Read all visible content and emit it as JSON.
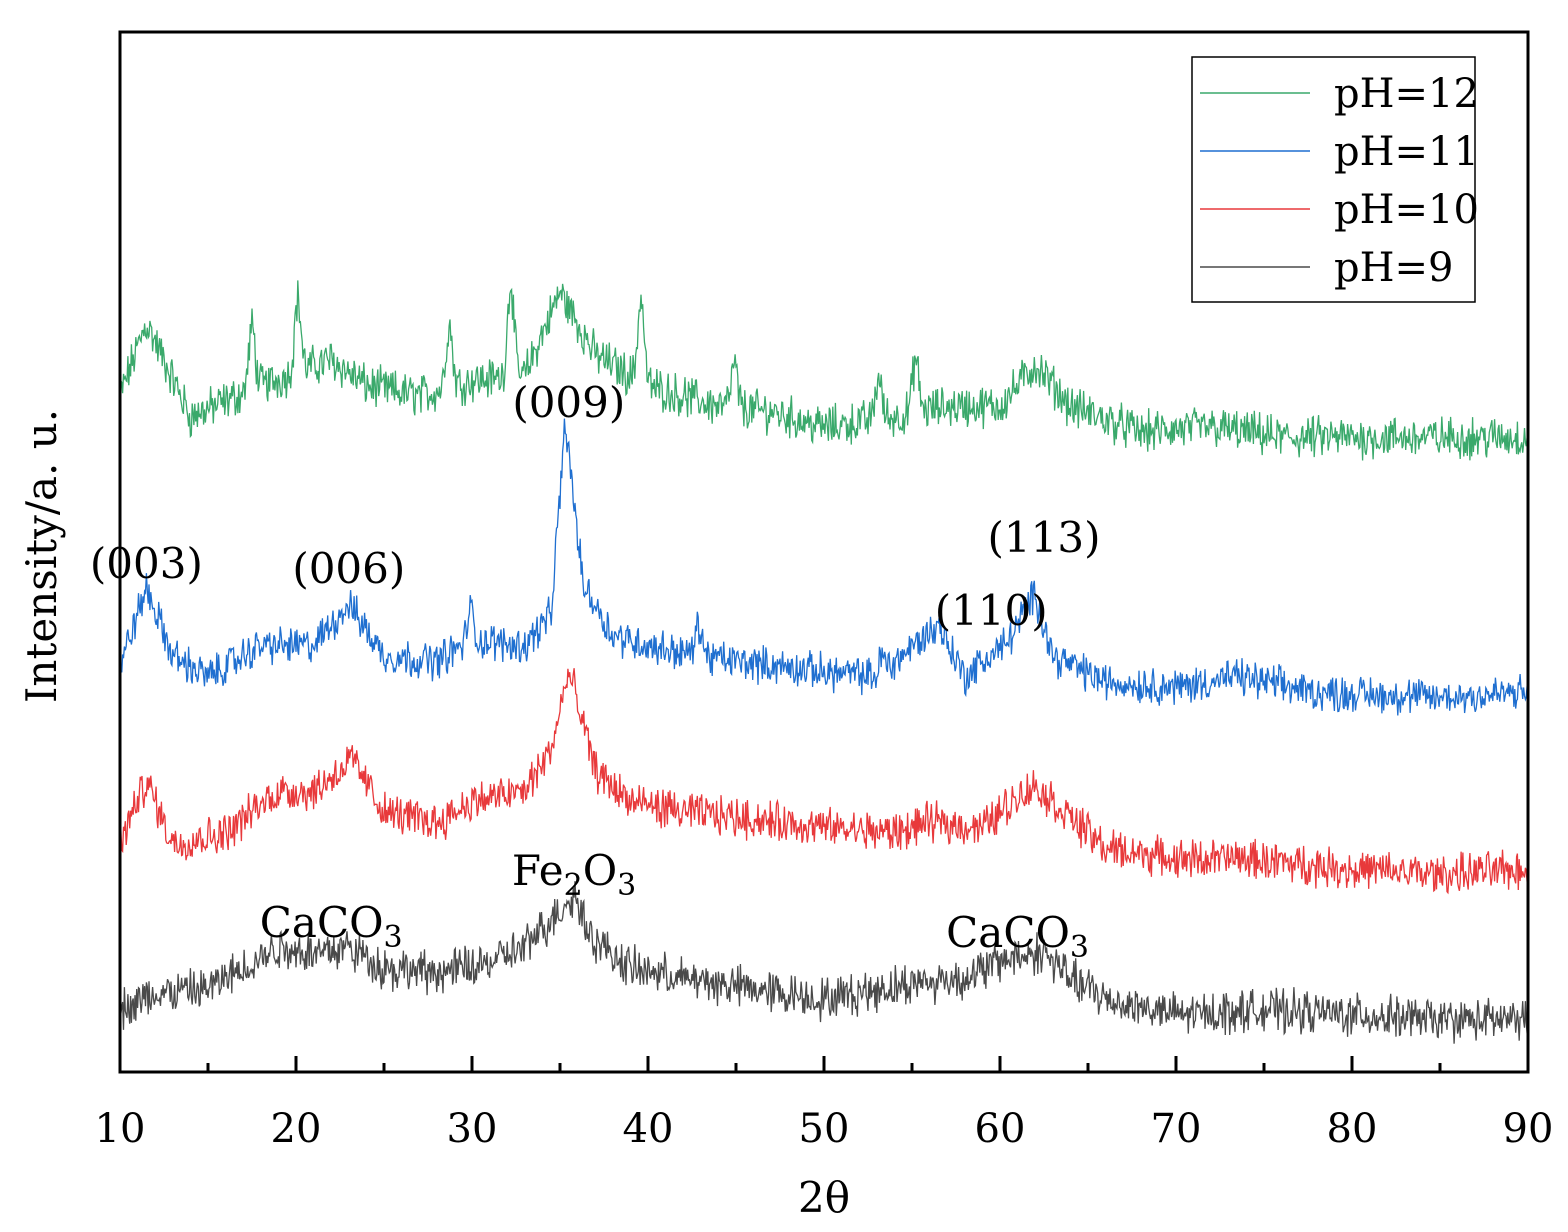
{
  "chart_data": {
    "type": "line",
    "title": "",
    "xlabel": "2θ",
    "ylabel": "Intensity/a. u.",
    "xlim": [
      10,
      90
    ],
    "xticks": [
      10,
      20,
      30,
      40,
      50,
      60,
      70,
      80,
      90
    ],
    "xtick_labels": [
      "10",
      "20",
      "30",
      "40",
      "50",
      "60",
      "70",
      "80",
      "90"
    ],
    "ylim": [
      0,
      100
    ],
    "y_ticks_shown": false,
    "legend_position": "top-right",
    "series": [
      {
        "name": "pH=12",
        "color": "#3aa96b",
        "baseline": 64,
        "noise": 1.6,
        "points": [
          [
            10,
            65
          ],
          [
            11.5,
            72
          ],
          [
            14,
            63
          ],
          [
            18,
            66
          ],
          [
            22,
            68.5
          ],
          [
            24,
            66
          ],
          [
            27,
            65
          ],
          [
            30,
            66.5
          ],
          [
            33,
            67
          ],
          [
            35,
            75
          ],
          [
            37,
            69
          ],
          [
            40,
            66
          ],
          [
            44,
            64
          ],
          [
            47,
            63.5
          ],
          [
            50,
            62
          ],
          [
            54,
            63
          ],
          [
            57,
            64
          ],
          [
            60,
            64
          ],
          [
            62,
            68
          ],
          [
            64,
            64
          ],
          [
            68,
            61.5
          ],
          [
            72,
            62
          ],
          [
            76,
            61
          ],
          [
            80,
            61
          ],
          [
            86,
            61
          ],
          [
            90,
            61
          ]
        ],
        "sharp_peaks": [
          [
            17.5,
            6
          ],
          [
            20.1,
            7
          ],
          [
            28.7,
            6
          ],
          [
            32.2,
            9
          ],
          [
            39.6,
            8
          ],
          [
            44.9,
            4
          ],
          [
            53.1,
            4
          ],
          [
            55.2,
            5
          ]
        ]
      },
      {
        "name": "pH=11",
        "color": "#1f6fd0",
        "baseline": 38,
        "noise": 1.4,
        "points": [
          [
            10,
            39
          ],
          [
            11.5,
            46.5
          ],
          [
            13,
            40
          ],
          [
            15,
            38
          ],
          [
            18,
            41
          ],
          [
            21,
            41
          ],
          [
            23,
            45
          ],
          [
            25,
            40
          ],
          [
            28,
            39.5
          ],
          [
            30,
            41.5
          ],
          [
            33,
            41
          ],
          [
            34.5,
            44
          ],
          [
            35.3,
            62.5
          ],
          [
            36.3,
            47
          ],
          [
            38,
            42
          ],
          [
            40,
            41
          ],
          [
            43,
            40
          ],
          [
            45,
            39.5
          ],
          [
            50,
            38.5
          ],
          [
            53,
            38
          ],
          [
            56.5,
            43
          ],
          [
            58,
            38
          ],
          [
            60.5,
            41.5
          ],
          [
            62,
            46
          ],
          [
            63,
            40
          ],
          [
            66,
            37.5
          ],
          [
            70,
            37
          ],
          [
            73.5,
            38
          ],
          [
            78,
            36.5
          ],
          [
            85,
            36
          ],
          [
            90,
            36.5
          ]
        ],
        "sharp_peaks": [
          [
            29.9,
            3
          ],
          [
            42.9,
            3
          ],
          [
            53.3,
            1.5
          ]
        ]
      },
      {
        "name": "pH=10",
        "color": "#e8393b",
        "baseline": 22,
        "noise": 1.5,
        "points": [
          [
            10,
            22
          ],
          [
            11.5,
            28
          ],
          [
            13,
            22
          ],
          [
            16,
            23
          ],
          [
            19,
            27
          ],
          [
            21,
            27
          ],
          [
            23.2,
            30
          ],
          [
            25,
            25
          ],
          [
            28,
            24
          ],
          [
            30,
            26
          ],
          [
            33,
            27
          ],
          [
            34.5,
            31
          ],
          [
            35.5,
            38.5
          ],
          [
            37,
            29
          ],
          [
            39,
            26
          ],
          [
            42,
            25
          ],
          [
            45,
            24.5
          ],
          [
            50,
            23.5
          ],
          [
            54,
            23
          ],
          [
            56,
            24
          ],
          [
            59,
            23.5
          ],
          [
            61,
            26.5
          ],
          [
            62,
            27.5
          ],
          [
            63,
            26
          ],
          [
            66,
            21.5
          ],
          [
            70,
            20.5
          ],
          [
            74,
            20.5
          ],
          [
            80,
            19.5
          ],
          [
            85,
            19
          ],
          [
            90,
            19.5
          ]
        ],
        "sharp_peaks": []
      },
      {
        "name": "pH=9",
        "color": "#4a4a4a",
        "baseline": 6,
        "noise": 1.6,
        "points": [
          [
            10,
            6
          ],
          [
            12,
            7.5
          ],
          [
            15,
            8
          ],
          [
            19,
            12
          ],
          [
            21,
            11.5
          ],
          [
            23,
            12
          ],
          [
            25,
            10
          ],
          [
            28,
            9.5
          ],
          [
            31,
            10.5
          ],
          [
            33,
            12
          ],
          [
            35.8,
            17
          ],
          [
            37,
            12.5
          ],
          [
            39,
            10
          ],
          [
            42,
            9
          ],
          [
            46,
            8
          ],
          [
            50,
            7
          ],
          [
            55,
            8.5
          ],
          [
            58,
            9
          ],
          [
            60.5,
            11
          ],
          [
            62.5,
            11.5
          ],
          [
            64,
            9
          ],
          [
            66,
            7
          ],
          [
            70,
            5.5
          ],
          [
            75,
            6
          ],
          [
            80,
            5.5
          ],
          [
            85,
            5
          ],
          [
            90,
            5
          ]
        ],
        "sharp_peaks": []
      }
    ],
    "annotations": [
      {
        "text": "(003)",
        "x": 11.5,
        "y": 47.5
      },
      {
        "text": "(006)",
        "x": 23.0,
        "y": 47.0
      },
      {
        "text": "(009)",
        "x": 35.5,
        "y": 63.0
      },
      {
        "text": "(110)",
        "x": 59.5,
        "y": 43.0
      },
      {
        "text": "(113)",
        "x": 62.5,
        "y": 50.0
      },
      {
        "text": "Fe",
        "sub": "2",
        "text2": "O",
        "sub2": "3",
        "x": 35.8,
        "y": 18.0
      },
      {
        "text": "CaCO",
        "sub": "3",
        "x": 22.0,
        "y": 13.0
      },
      {
        "text": "CaCO",
        "sub": "3",
        "x": 61.0,
        "y": 12.0
      }
    ]
  }
}
